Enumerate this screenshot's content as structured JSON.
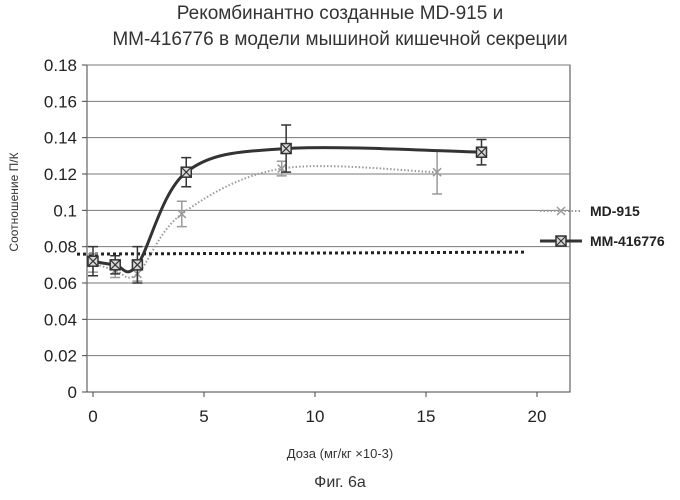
{
  "chart_data": {
    "type": "line",
    "title_line1": "Рекомбинантно созданные MD-915 и",
    "title_line2": "MM-416776 в модели мышиной кишечной секреции",
    "xlabel": "Доза (мг/кг ×10-3)",
    "ylabel": "Соотношение П/К",
    "xlim": [
      0,
      20
    ],
    "ylim": [
      0,
      0.18
    ],
    "x_ticks": [
      "0",
      "5",
      "10",
      "15",
      "20"
    ],
    "y_ticks": [
      "0",
      "0.02",
      "0.04",
      "0.06",
      "0.08",
      "0.1",
      "0.12",
      "0.14",
      "0.16",
      "0.18"
    ],
    "grid": "horizontal",
    "legend_position": "right",
    "baseline": {
      "y": 0.077,
      "style": "dotted",
      "color": "#222222"
    },
    "series": [
      {
        "name": "MD-915",
        "color": "#9a9a9a",
        "marker": "cross",
        "x": [
          0,
          1,
          2,
          4,
          8.5,
          15.5
        ],
        "y": [
          0.071,
          0.067,
          0.065,
          0.098,
          0.123,
          0.121
        ],
        "err": [
          0.005,
          0.004,
          0.004,
          0.007,
          0.004,
          0.012
        ]
      },
      {
        "name": "MM-416776",
        "color": "#333333",
        "marker": "square-x",
        "x": [
          0,
          1,
          2,
          4.2,
          8.7,
          17.5
        ],
        "y": [
          0.072,
          0.07,
          0.07,
          0.121,
          0.134,
          0.132
        ],
        "err": [
          0.008,
          0.005,
          0.01,
          0.008,
          0.013,
          0.007
        ]
      }
    ]
  },
  "caption": "Фиг. 6а"
}
